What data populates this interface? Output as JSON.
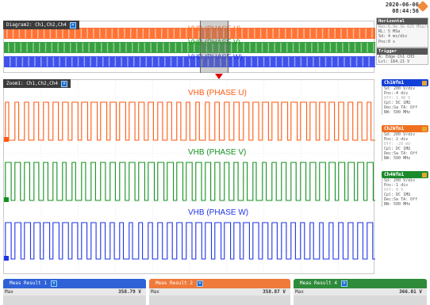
{
  "clock": {
    "date": "2020-06-06",
    "time": "08:44:56"
  },
  "overview": {
    "tab_label": "Diagram2: Ch1,Ch2,Ch4",
    "labels": {
      "u": "VHB (PHASE U)",
      "v": "VHB (PHASE V)",
      "w": "VHB (PHASE W)"
    }
  },
  "zoom": {
    "tab_label": "Zoom1: Ch1,Ch2,Ch4",
    "labels": {
      "u": "VHB (PHASE U)",
      "v": "VHB (PHASE V)",
      "w": "VHB (PHASE W)"
    }
  },
  "horizontal": {
    "title": "Horizontal",
    "rows": [
      "Res:6.9e SG 625 MSa/s",
      "RL: 5 MSa",
      "Sd: 4 ms/div",
      "Pos:0 s"
    ]
  },
  "trigger": {
    "title": "Trigger",
    "rows": [
      "A: Edge Ch1 CH3",
      "Lvl: 184.21 V"
    ]
  },
  "channels": [
    {
      "name": "Ch1Wfm1",
      "color": "#1340d8",
      "rows": [
        "Sd: 200 V/div",
        "Pos:-4 div",
        "Off: 1.48 V",
        "Cpl: DC 1MΩ",
        "Dec:Sa   TA: Off",
        "BW: 500 MHz"
      ]
    },
    {
      "name": "Ch2Wfm1",
      "color": "#f07020",
      "rows": [
        "Sd: 200 V/div",
        "Pos: 2 div",
        "Off: -20 mV",
        "Cpl: DC 1MΩ",
        "Dec:Sa   TA: Off",
        "BW: 500 MHz"
      ]
    },
    {
      "name": "Ch4Wfm1",
      "color": "#1d8a2c",
      "rows": [
        "Sd: 200 V/div",
        "Pos:-1 div",
        "Off: 0 V",
        "Cpl: DC 1MΩ",
        "Dec:Sa   TA: Off",
        "BW: 500 MHz"
      ]
    }
  ],
  "measurements": [
    {
      "title": "Meas Result 1",
      "color": "#2f62d6",
      "label": "Max",
      "value": "358.79 V"
    },
    {
      "title": "Meas Result 2",
      "color": "#ef7a3a",
      "label": "Max",
      "value": "358.87 V"
    },
    {
      "title": "Meas Result 4",
      "color": "#2e8b3a",
      "label": "Max",
      "value": "366.01 V"
    }
  ],
  "colors": {
    "phase_u": "#ff5a12",
    "phase_v": "#14911e",
    "phase_w": "#1f34e8"
  }
}
